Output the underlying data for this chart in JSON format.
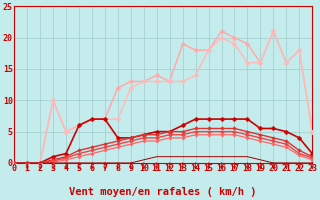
{
  "background_color": "#c5ecec",
  "grid_color": "#a0cccc",
  "tick_color": "#cc0000",
  "xlabel": "Vent moyen/en rafales ( km/h )",
  "xlim": [
    0,
    23
  ],
  "ylim": [
    0,
    25
  ],
  "x_ticks": [
    0,
    1,
    2,
    3,
    4,
    5,
    6,
    7,
    8,
    9,
    10,
    11,
    12,
    13,
    14,
    15,
    16,
    17,
    18,
    19,
    20,
    21,
    22,
    23
  ],
  "y_ticks": [
    0,
    5,
    10,
    15,
    20,
    25
  ],
  "lines": [
    {
      "x": [
        0,
        1,
        2,
        3,
        4,
        5,
        6,
        7,
        8,
        9,
        10,
        11,
        12,
        13,
        14,
        15,
        16,
        17,
        18,
        19,
        20,
        21,
        22,
        23
      ],
      "y": [
        0,
        0,
        0,
        10,
        5,
        6,
        7,
        7,
        12,
        13,
        13,
        14,
        13,
        19,
        18,
        18,
        21,
        20,
        19,
        16,
        21,
        16,
        18,
        5
      ],
      "color": "#ffaaaa",
      "lw": 1.1,
      "marker": "D",
      "ms": 2.5
    },
    {
      "x": [
        0,
        1,
        2,
        3,
        4,
        5,
        6,
        7,
        8,
        9,
        10,
        11,
        12,
        13,
        14,
        15,
        16,
        17,
        18,
        19,
        20,
        21,
        22,
        23
      ],
      "y": [
        0,
        0,
        0,
        10,
        5,
        6,
        7,
        7,
        7,
        12,
        13,
        13,
        13,
        13,
        14,
        18,
        20,
        19,
        16,
        16,
        21,
        16,
        18,
        5
      ],
      "color": "#ffbbbb",
      "lw": 1.1,
      "marker": "D",
      "ms": 2.5
    },
    {
      "x": [
        0,
        1,
        2,
        3,
        4,
        5,
        6,
        7,
        8,
        9,
        10,
        11,
        12,
        13,
        14,
        15,
        16,
        17,
        18,
        19,
        20,
        21,
        22,
        23
      ],
      "y": [
        0,
        0,
        0,
        1,
        1.5,
        6,
        7,
        7,
        4,
        4,
        4.5,
        5,
        5,
        6,
        7,
        7,
        7,
        7,
        7,
        5.5,
        5.5,
        5,
        4,
        1.5
      ],
      "color": "#cc0000",
      "lw": 1.2,
      "marker": "D",
      "ms": 2.5
    },
    {
      "x": [
        0,
        1,
        2,
        3,
        4,
        5,
        6,
        7,
        8,
        9,
        10,
        11,
        12,
        13,
        14,
        15,
        16,
        17,
        18,
        19,
        20,
        21,
        22,
        23
      ],
      "y": [
        0,
        0,
        0,
        0.5,
        1,
        2,
        2.5,
        3,
        3.5,
        4,
        4.5,
        4.5,
        5,
        5,
        5.5,
        5.5,
        5.5,
        5.5,
        5,
        4.5,
        4,
        3.5,
        2,
        1
      ],
      "color": "#dd3333",
      "lw": 1.0,
      "marker": "D",
      "ms": 2.0
    },
    {
      "x": [
        0,
        1,
        2,
        3,
        4,
        5,
        6,
        7,
        8,
        9,
        10,
        11,
        12,
        13,
        14,
        15,
        16,
        17,
        18,
        19,
        20,
        21,
        22,
        23
      ],
      "y": [
        0,
        0,
        0,
        0.3,
        0.8,
        1.5,
        2,
        2.5,
        3,
        3.5,
        4,
        4,
        4.5,
        4.5,
        5,
        5,
        5,
        5,
        4.5,
        4,
        3.5,
        3,
        1.5,
        0.8
      ],
      "color": "#ee4444",
      "lw": 1.0,
      "marker": "D",
      "ms": 2.0
    },
    {
      "x": [
        0,
        1,
        2,
        3,
        4,
        5,
        6,
        7,
        8,
        9,
        10,
        11,
        12,
        13,
        14,
        15,
        16,
        17,
        18,
        19,
        20,
        21,
        22,
        23
      ],
      "y": [
        0,
        0,
        0,
        0.1,
        0.5,
        1,
        1.5,
        2,
        2.5,
        3,
        3.5,
        3.5,
        4,
        4,
        4.5,
        4.5,
        4.5,
        4.5,
        4,
        3.5,
        3,
        2.5,
        1.2,
        0.5
      ],
      "color": "#ff6666",
      "lw": 0.9,
      "marker": "D",
      "ms": 1.8
    },
    {
      "x": [
        0,
        1,
        2,
        3,
        4,
        5,
        6,
        7,
        8,
        9,
        10,
        11,
        12,
        13,
        14,
        15,
        16,
        17,
        18,
        19,
        20,
        21,
        22,
        23
      ],
      "y": [
        0,
        0,
        0,
        0,
        0,
        0,
        0,
        0,
        0,
        0,
        0.5,
        1,
        1,
        1,
        1,
        1,
        1,
        1,
        1,
        0.5,
        0,
        0,
        0,
        0
      ],
      "color": "#990000",
      "lw": 0.7,
      "marker": null,
      "ms": 0
    }
  ],
  "tick_fontsize": 6,
  "xlabel_fontsize": 7.5
}
